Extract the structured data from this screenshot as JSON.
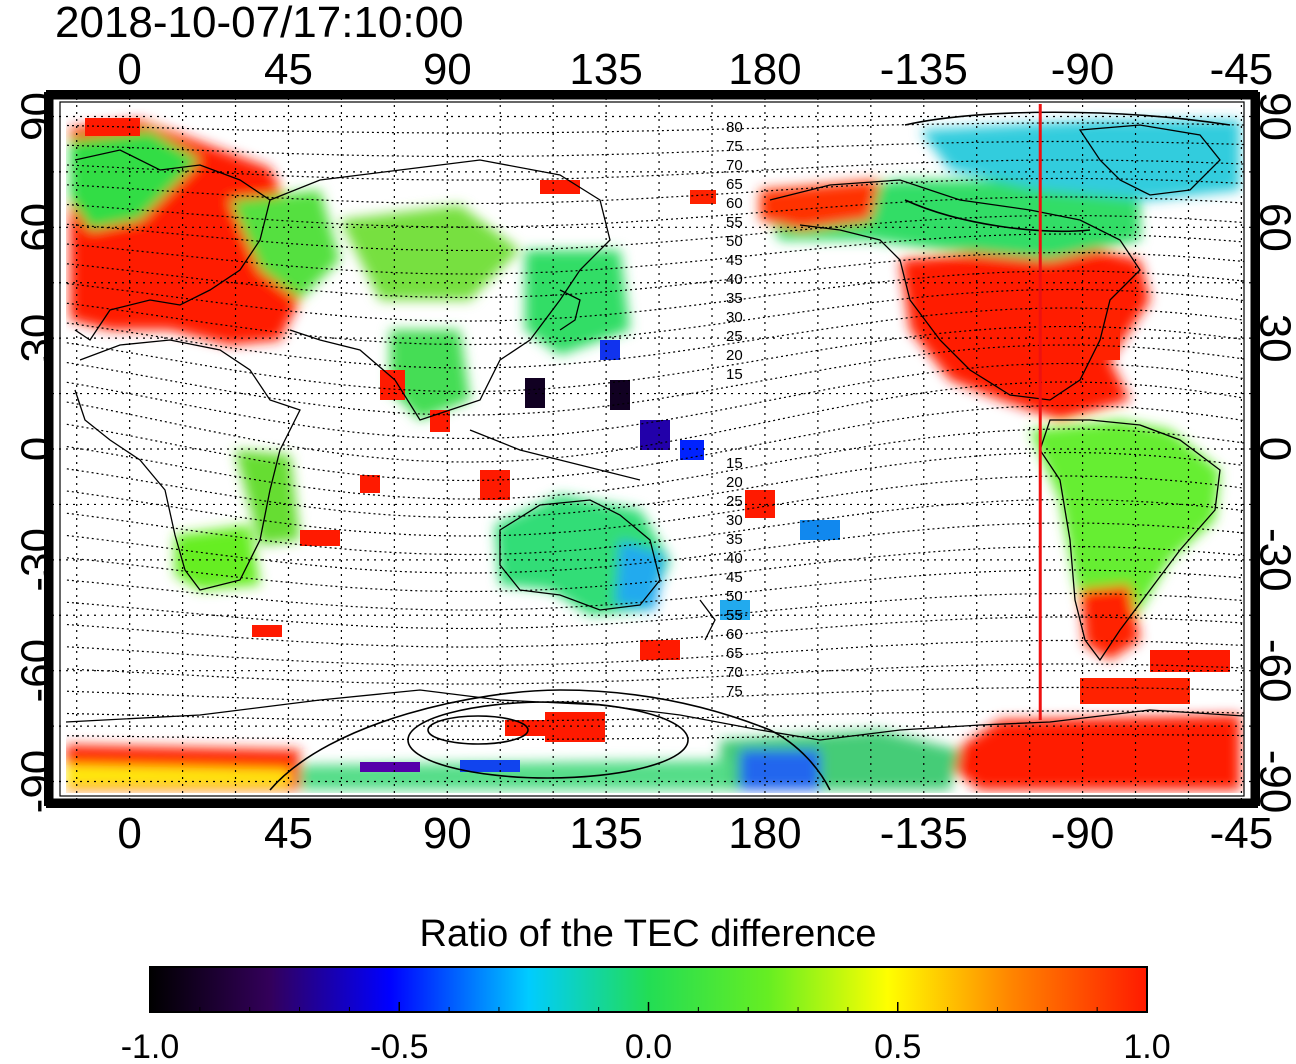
{
  "timestamp": "2018-10-07/17:10:00",
  "x_tick_labels": [
    "0",
    "45",
    "90",
    "135",
    "180",
    "-135",
    "-90",
    "-45"
  ],
  "y_tick_labels": [
    "90",
    "60",
    "30",
    "0",
    "-30",
    "-60",
    "-90"
  ],
  "mag_lat_labels_north": [
    "80",
    "75",
    "70",
    "65",
    "60",
    "55",
    "50",
    "45",
    "40",
    "35",
    "30",
    "25",
    "20",
    "15"
  ],
  "mag_lat_labels_south": [
    "15",
    "20",
    "25",
    "30",
    "35",
    "40",
    "45",
    "50",
    "55",
    "60",
    "65",
    "70",
    "75"
  ],
  "colorbar": {
    "title": "Ratio of the TEC difference",
    "tick_labels": [
      "-1.0",
      "-0.5",
      "0.0",
      "0.5",
      "1.0"
    ],
    "range": [
      -1.0,
      1.0
    ]
  },
  "colors": {
    "strong_positive": "#ff1a00",
    "moderate_positive": "#ff9900",
    "near_zero": "#33dd44",
    "moderate_negative": "#00ccee",
    "strong_negative": "#0022ff",
    "very_negative": "#110022"
  },
  "map": {
    "projection": "equirectangular",
    "lon_range_east": [
      -22,
      318
    ],
    "lat_range": [
      -95,
      95
    ],
    "meridian_marker_lon": -102
  }
}
